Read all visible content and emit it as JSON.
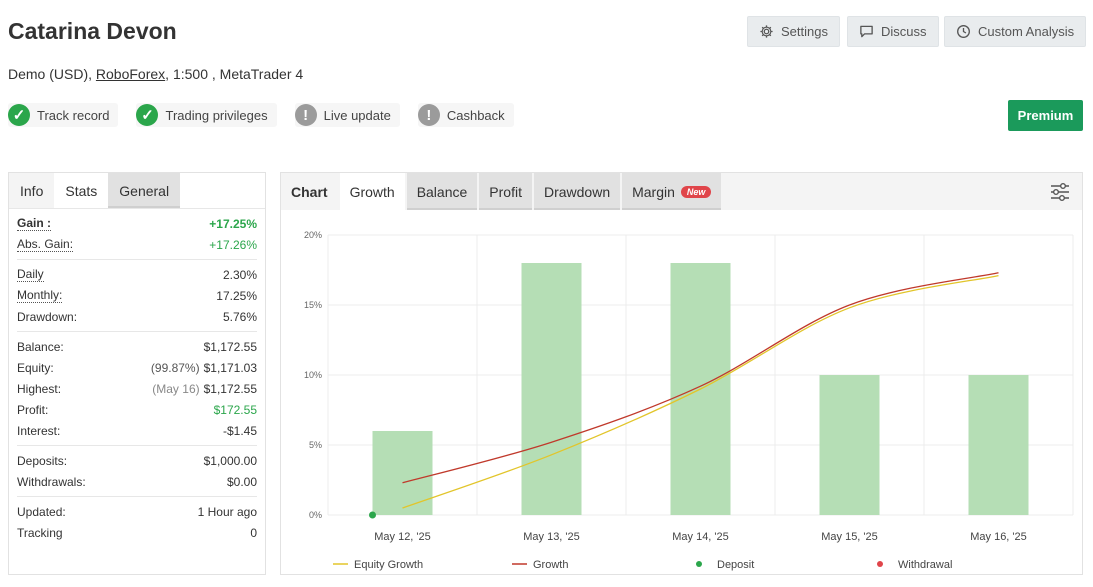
{
  "header": {
    "title": "Catarina Devon",
    "sub_prefix": "Demo (USD), ",
    "broker": "RoboForex",
    "sub_suffix": ", 1:500 , MetaTrader 4"
  },
  "actions": {
    "settings": "Settings",
    "discuss": "Discuss",
    "custom_analysis": "Custom Analysis",
    "premium": "Premium"
  },
  "badges": [
    {
      "label": "Track record",
      "status": "ok"
    },
    {
      "label": "Trading privileges",
      "status": "ok"
    },
    {
      "label": "Live update",
      "status": "warn"
    },
    {
      "label": "Cashback",
      "status": "warn"
    }
  ],
  "left_tabs": [
    "Info",
    "Stats",
    "General"
  ],
  "stats": {
    "gain_label": "Gain :",
    "gain": "+17.25%",
    "abs_gain_label": "Abs. Gain:",
    "abs_gain": "+17.26%",
    "daily_label": "Daily",
    "daily": "2.30%",
    "monthly_label": "Monthly:",
    "monthly": "17.25%",
    "drawdown_label": "Drawdown:",
    "drawdown": "5.76%",
    "balance_label": "Balance:",
    "balance": "$1,172.55",
    "equity_label": "Equity:",
    "equity_pct": "(99.87%)",
    "equity": "$1,171.03",
    "highest_label": "Highest:",
    "highest_date": "(May 16)",
    "highest": "$1,172.55",
    "profit_label": "Profit:",
    "profit": "$172.55",
    "interest_label": "Interest:",
    "interest": "-$1.45",
    "deposits_label": "Deposits:",
    "deposits": "$1,000.00",
    "withdrawals_label": "Withdrawals:",
    "withdrawals": "$0.00",
    "updated_label": "Updated:",
    "updated": "1 Hour ago",
    "tracking_label": "Tracking",
    "tracking": "0"
  },
  "chart_tabs": {
    "chart": "Chart",
    "growth": "Growth",
    "balance": "Balance",
    "profit": "Profit",
    "drawdown": "Drawdown",
    "margin": "Margin",
    "new_tag": "New"
  },
  "colors": {
    "bar": "#b5deb5",
    "equity_line": "#e2c52a",
    "growth_line": "#c0392b",
    "deposit": "#2ba64b",
    "withdrawal": "#e0454a"
  },
  "chart_data": {
    "type": "bar",
    "categories": [
      "May 12, '25",
      "May 13, '25",
      "May 14, '25",
      "May 15, '25",
      "May 16, '25"
    ],
    "ylim": [
      0,
      20
    ],
    "yticks": [
      "0%",
      "5%",
      "10%",
      "15%",
      "20%"
    ],
    "series": [
      {
        "kind": "bar",
        "values": [
          6.0,
          18.0,
          18.0,
          10.0,
          10.0
        ]
      },
      {
        "name": "Equity Growth",
        "kind": "line",
        "x": [
          0,
          1,
          2,
          3,
          4
        ],
        "values": [
          0.5,
          4.3,
          9.0,
          14.8,
          17.1
        ]
      },
      {
        "name": "Growth",
        "kind": "line",
        "x": [
          0,
          1,
          2,
          3,
          4
        ],
        "values": [
          2.3,
          5.2,
          9.2,
          15.0,
          17.3
        ]
      }
    ],
    "deposits": [
      {
        "x": 0,
        "y": 0
      }
    ],
    "withdrawals": [],
    "legend": [
      "Equity Growth",
      "Growth",
      "Deposit",
      "Withdrawal"
    ],
    "legend_position": "bottom",
    "grid": true
  }
}
